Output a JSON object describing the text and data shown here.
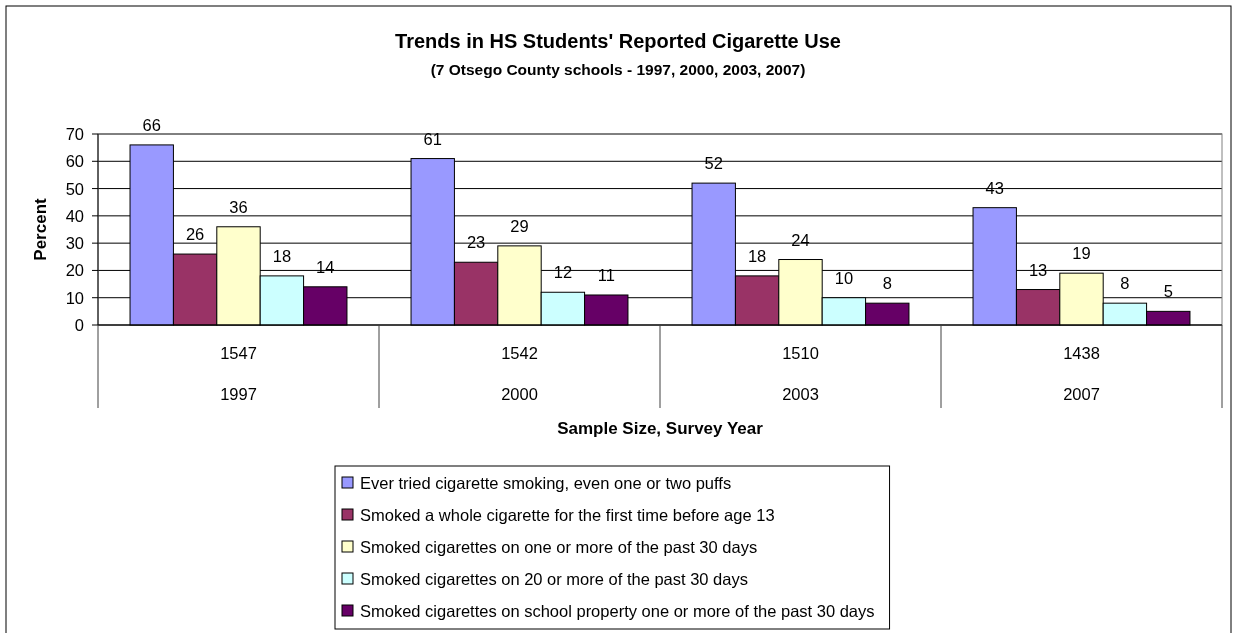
{
  "chart_data": {
    "type": "bar",
    "title": "Trends in HS Students' Reported Cigarette Use",
    "subtitle": "(7 Otsego County schools - 1997, 2000, 2003, 2007)",
    "xlabel": "Sample Size, Survey Year",
    "ylabel": "Percent",
    "categories": [
      "1547\n1997",
      "1542\n2000",
      "1510\n2003",
      "1438\n2007"
    ],
    "series": [
      {
        "name": "Ever tried cigarette smoking, even one or two puffs",
        "color": "#9999ff",
        "values": [
          66,
          61,
          52,
          43
        ]
      },
      {
        "name": "Smoked a whole cigarette for the first time before age 13",
        "color": "#993366",
        "values": [
          26,
          23,
          18,
          13
        ]
      },
      {
        "name": "Smoked cigarettes on one or more of the past 30 days",
        "color": "#ffffcc",
        "values": [
          36,
          29,
          24,
          19
        ]
      },
      {
        "name": "Smoked cigarettes on 20 or more of the past 30 days",
        "color": "#ccffff",
        "values": [
          18,
          12,
          10,
          8
        ]
      },
      {
        "name": "Smoked cigarettes on school property one or more of the past 30 days",
        "color": "#660066",
        "values": [
          14,
          11,
          8,
          5
        ]
      }
    ],
    "ylim": [
      0,
      70
    ],
    "yticks": [
      0,
      10,
      20,
      30,
      40,
      50,
      60,
      70
    ],
    "grid": "y",
    "legend": "bottom",
    "data_labels": true
  }
}
